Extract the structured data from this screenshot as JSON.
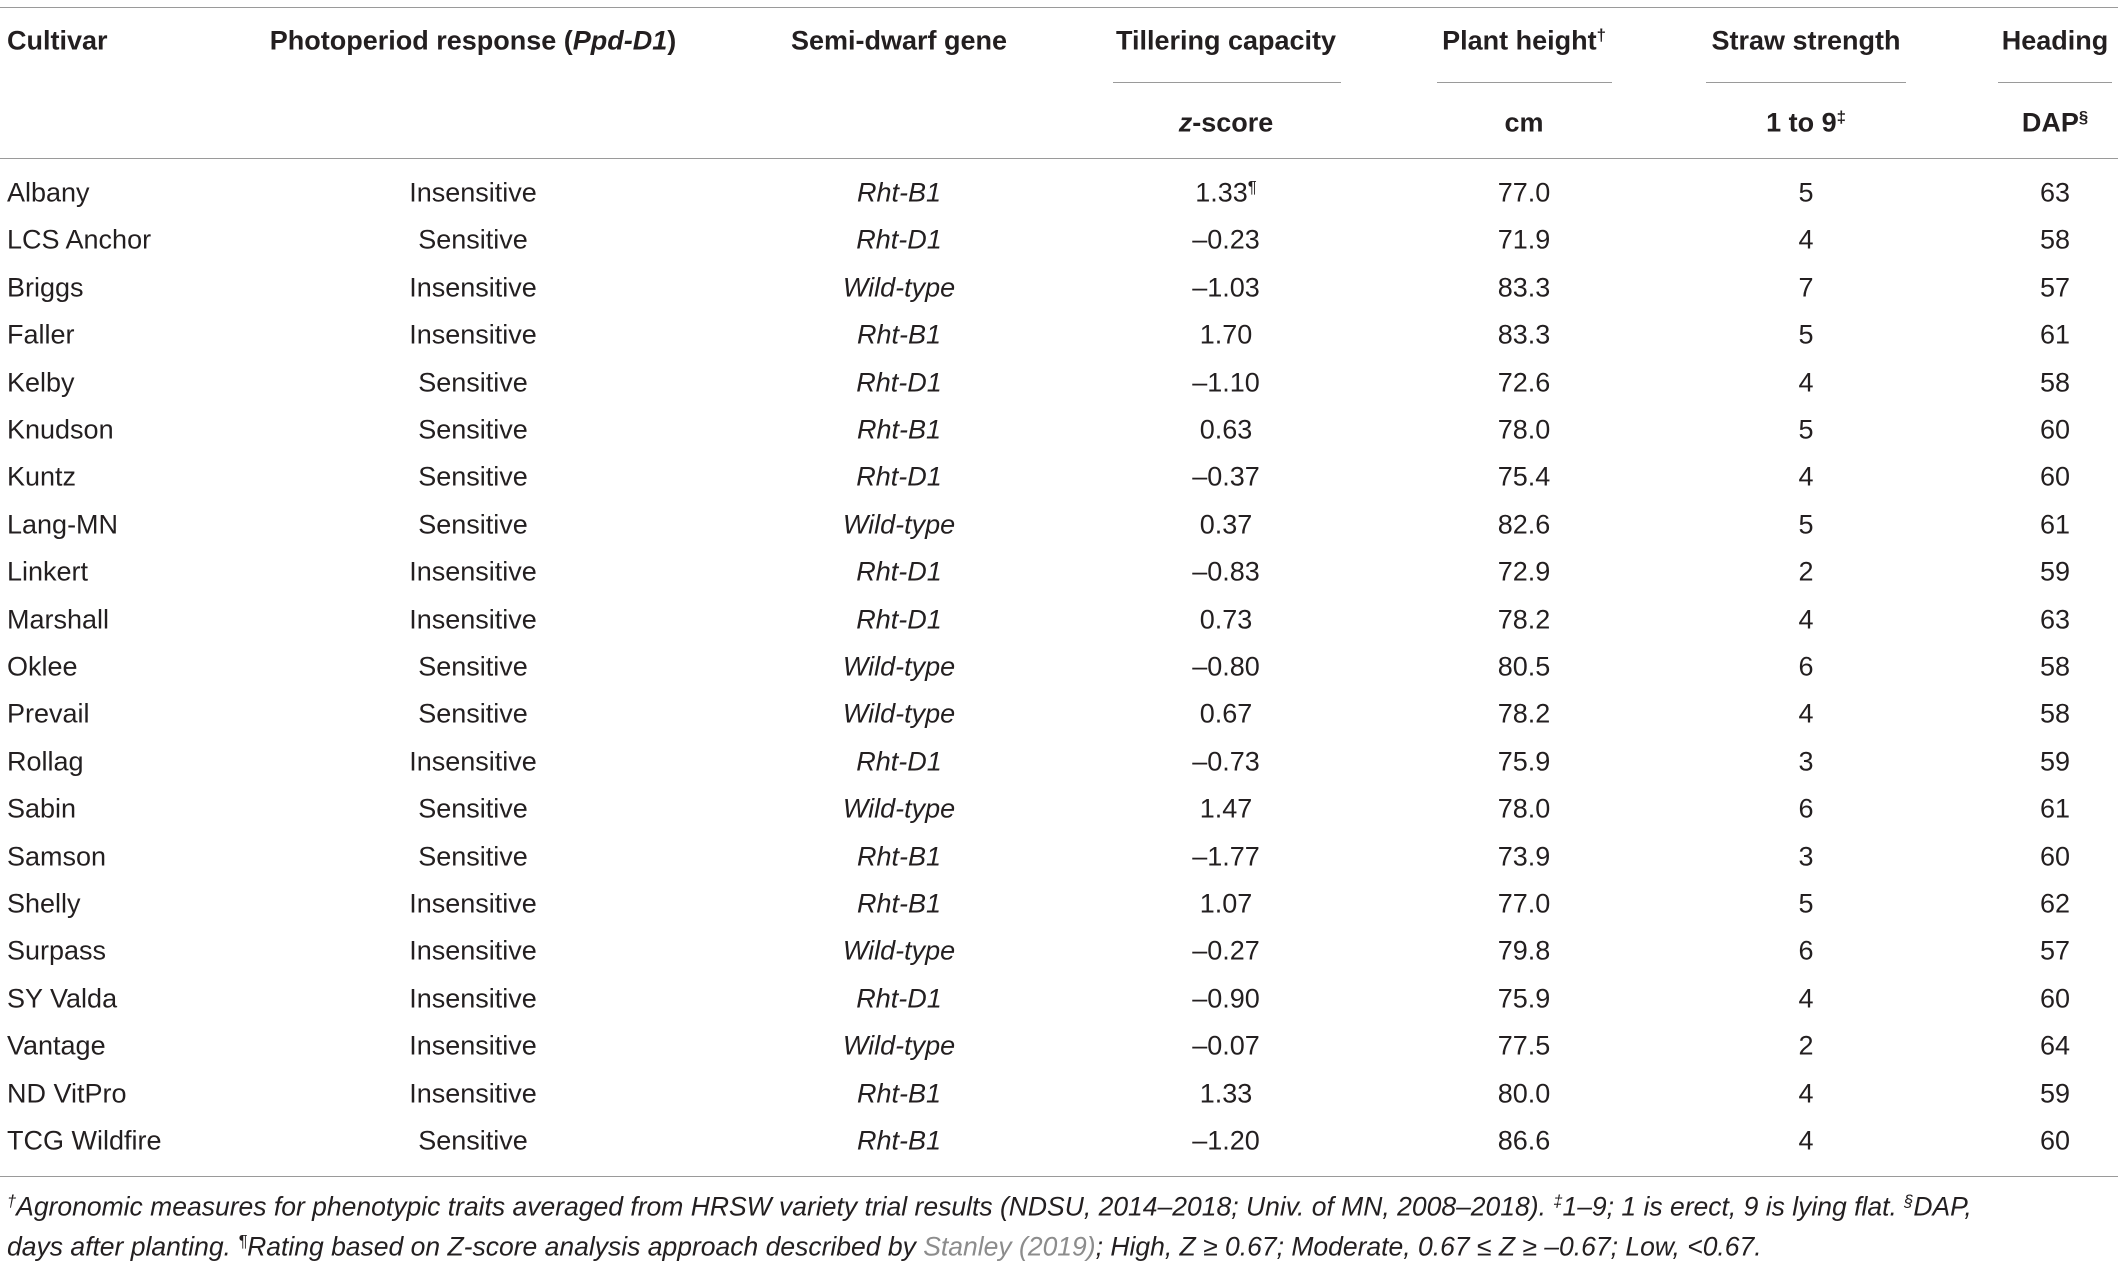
{
  "table": {
    "columns": [
      {
        "header": [
          {
            "text": "Cultivar"
          }
        ],
        "align": "left"
      },
      {
        "header": [
          {
            "text": "Photoperiod response ("
          },
          {
            "text": "Ppd-D1",
            "italic": true
          },
          {
            "text": ")"
          }
        ],
        "align": "center"
      },
      {
        "header": [
          {
            "text": "Semi-dwarf gene"
          }
        ],
        "align": "center",
        "italic": true
      },
      {
        "header": [
          {
            "text": "Tillering capacity"
          }
        ],
        "unit": [
          {
            "text": "z",
            "italic": true
          },
          {
            "text": "-score"
          }
        ],
        "align": "center"
      },
      {
        "header": [
          {
            "text": "Plant height"
          },
          {
            "text": "†",
            "sup": true
          }
        ],
        "unit": [
          {
            "text": "cm"
          }
        ],
        "align": "center"
      },
      {
        "header": [
          {
            "text": "Straw strength"
          }
        ],
        "unit": [
          {
            "text": "1 to 9"
          },
          {
            "text": "‡",
            "sup": true
          }
        ],
        "align": "center"
      },
      {
        "header": [
          {
            "text": "Heading"
          }
        ],
        "unit": [
          {
            "text": "DAP"
          },
          {
            "text": "§",
            "sup": true
          }
        ],
        "align": "center"
      }
    ],
    "rows": [
      [
        "Albany",
        "Insensitive",
        "Rht-B1",
        [
          {
            "text": "1.33"
          },
          {
            "text": "¶",
            "sup": true
          }
        ],
        "77.0",
        "5",
        "63"
      ],
      [
        "LCS Anchor",
        "Sensitive",
        "Rht-D1",
        "–0.23",
        "71.9",
        "4",
        "58"
      ],
      [
        "Briggs",
        "Insensitive",
        "Wild-type",
        "–1.03",
        "83.3",
        "7",
        "57"
      ],
      [
        "Faller",
        "Insensitive",
        "Rht-B1",
        "1.70",
        "83.3",
        "5",
        "61"
      ],
      [
        "Kelby",
        "Sensitive",
        "Rht-D1",
        "–1.10",
        "72.6",
        "4",
        "58"
      ],
      [
        "Knudson",
        "Sensitive",
        "Rht-B1",
        "0.63",
        "78.0",
        "5",
        "60"
      ],
      [
        "Kuntz",
        "Sensitive",
        "Rht-D1",
        "–0.37",
        "75.4",
        "4",
        "60"
      ],
      [
        "Lang-MN",
        "Sensitive",
        "Wild-type",
        "0.37",
        "82.6",
        "5",
        "61"
      ],
      [
        "Linkert",
        "Insensitive",
        "Rht-D1",
        "–0.83",
        "72.9",
        "2",
        "59"
      ],
      [
        "Marshall",
        "Insensitive",
        "Rht-D1",
        "0.73",
        "78.2",
        "4",
        "63"
      ],
      [
        "Oklee",
        "Sensitive",
        "Wild-type",
        "–0.80",
        "80.5",
        "6",
        "58"
      ],
      [
        "Prevail",
        "Sensitive",
        "Wild-type",
        "0.67",
        "78.2",
        "4",
        "58"
      ],
      [
        "Rollag",
        "Insensitive",
        "Rht-D1",
        "–0.73",
        "75.9",
        "3",
        "59"
      ],
      [
        "Sabin",
        "Sensitive",
        "Wild-type",
        "1.47",
        "78.0",
        "6",
        "61"
      ],
      [
        "Samson",
        "Sensitive",
        "Rht-B1",
        "–1.77",
        "73.9",
        "3",
        "60"
      ],
      [
        "Shelly",
        "Insensitive",
        "Rht-B1",
        "1.07",
        "77.0",
        "5",
        "62"
      ],
      [
        "Surpass",
        "Insensitive",
        "Wild-type",
        "–0.27",
        "79.8",
        "6",
        "57"
      ],
      [
        "SY Valda",
        "Insensitive",
        "Rht-D1",
        "–0.90",
        "75.9",
        "4",
        "60"
      ],
      [
        "Vantage",
        "Insensitive",
        "Wild-type",
        "–0.07",
        "77.5",
        "2",
        "64"
      ],
      [
        "ND VitPro",
        "Insensitive",
        "Rht-B1",
        "1.33",
        "80.0",
        "4",
        "59"
      ],
      [
        "TCG Wildfire",
        "Sensitive",
        "Rht-B1",
        "–1.20",
        "86.6",
        "4",
        "60"
      ]
    ]
  },
  "footnote": {
    "lines": [
      [
        {
          "text": "†",
          "sup": true
        },
        {
          "text": "Agronomic measures for phenotypic traits averaged from HRSW variety trial results (NDSU, 2014–2018; Univ. of MN, 2008–2018). "
        },
        {
          "text": "‡",
          "sup": true
        },
        {
          "text": "1–9; 1 is erect, 9 is lying flat. "
        },
        {
          "text": "§",
          "sup": true
        },
        {
          "text": "DAP,"
        }
      ],
      [
        {
          "text": "days after planting. "
        },
        {
          "text": "¶",
          "sup": true
        },
        {
          "text": "Rating based on Z-score analysis approach described by "
        },
        {
          "text": "Stanley (2019)",
          "link": true
        },
        {
          "text": "; High, Z ≥ 0.67; Moderate, 0.67 ≤ Z ≥ –0.67; Low, <0.67."
        }
      ]
    ]
  }
}
